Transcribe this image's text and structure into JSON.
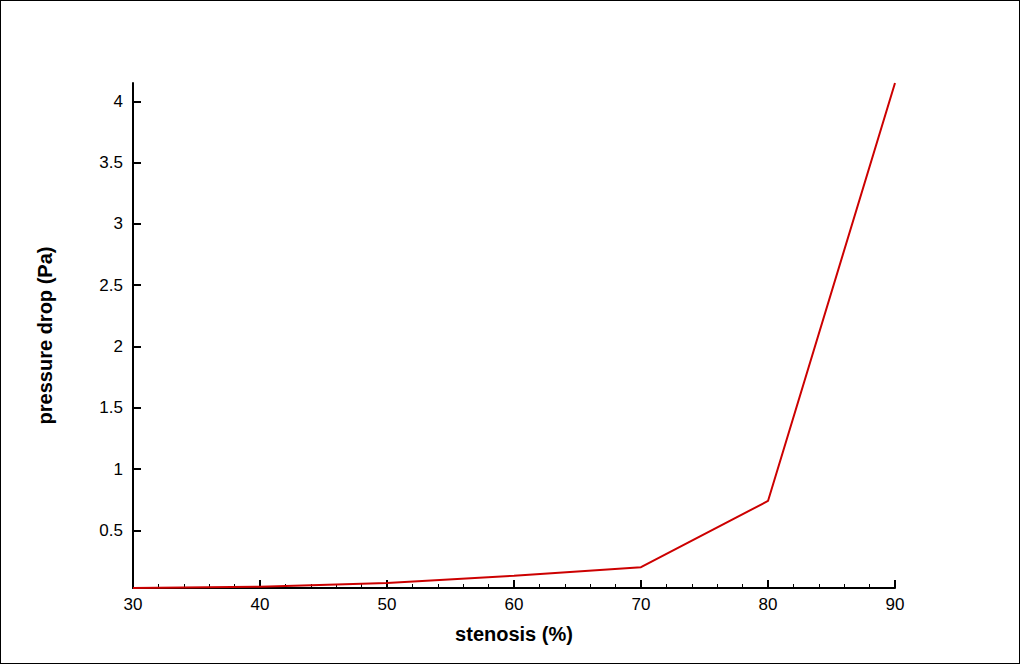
{
  "chart_data": {
    "type": "line",
    "xlabel": "stenosis (%)",
    "ylabel": "pressure drop (Pa)",
    "x": [
      30,
      40,
      50,
      60,
      70,
      80,
      90
    ],
    "values": [
      0.03,
      0.04,
      0.07,
      0.13,
      0.2,
      0.74,
      4.15
    ],
    "color": "#cc0000",
    "xlim": [
      30,
      90
    ],
    "xticks": [
      30,
      40,
      50,
      60,
      70,
      80,
      90
    ],
    "ylim": [
      0.03,
      4.15
    ],
    "yticks": [
      0.5,
      1,
      1.5,
      2,
      2.5,
      3,
      3.5,
      4
    ],
    "grid": false
  }
}
